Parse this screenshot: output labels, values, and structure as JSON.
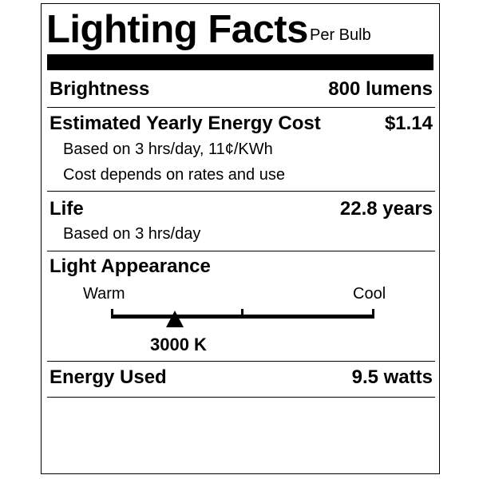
{
  "header": {
    "title": "Lighting Facts",
    "subtitle": "Per Bulb"
  },
  "brightness": {
    "label": "Brightness",
    "value": "800 lumens"
  },
  "energy_cost": {
    "label": "Estimated Yearly Energy Cost",
    "value": "$1.14",
    "notes": [
      "Based on 3 hrs/day, 11¢/KWh",
      "Cost depends on rates and use"
    ]
  },
  "life": {
    "label": "Life",
    "value": "22.8 years",
    "note": "Based on 3 hrs/day"
  },
  "light_appearance": {
    "label": "Light Appearance",
    "warm_label": "Warm",
    "cool_label": "Cool",
    "value": "3000 K"
  },
  "energy_used": {
    "label": "Energy Used",
    "value": "9.5 watts"
  }
}
